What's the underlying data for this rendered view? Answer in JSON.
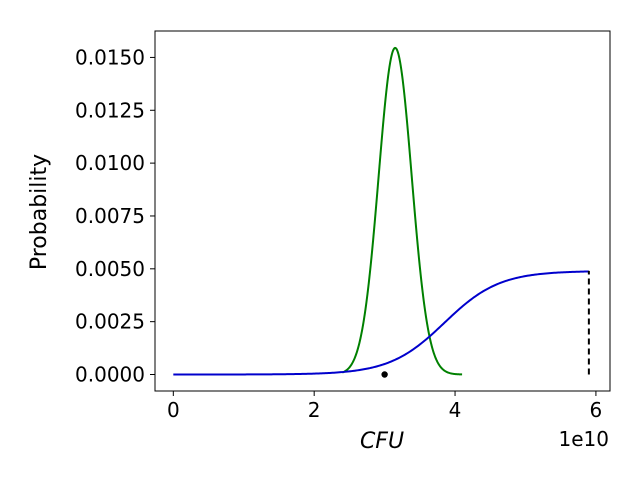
{
  "chart_data": {
    "type": "line",
    "title": "",
    "xlabel": "CFU",
    "ylabel": "Probability",
    "x_offset_label": "1e10",
    "xlim": [
      -2600000000.0,
      62000000000.0
    ],
    "ylim": [
      -0.00078,
      0.01625
    ],
    "x_ticks": [
      0,
      20000000000.0,
      40000000000.0,
      60000000000.0
    ],
    "x_tick_labels": [
      "0",
      "2",
      "4",
      "6"
    ],
    "y_ticks": [
      0.0,
      0.0025,
      0.005,
      0.0075,
      0.01,
      0.0125,
      0.015
    ],
    "y_tick_labels": [
      "0.0000",
      "0.0025",
      "0.0050",
      "0.0075",
      "0.0100",
      "0.0125",
      "0.0150"
    ],
    "grid": false,
    "legend": "none",
    "series": [
      {
        "kind": "gaussian",
        "color": "#008000",
        "x_range": [
          24000000000.0,
          41000000000.0
        ],
        "mean": 31500000000.0,
        "sd": 2350000000.0,
        "peak": 0.01545
      },
      {
        "kind": "logistic",
        "color": "#0000cc",
        "x_range": [
          0,
          59000000000.0
        ],
        "midpoint": 38500000000.0,
        "scale": 3900000000.0,
        "max": 0.0049
      }
    ],
    "markers": [
      {
        "kind": "point",
        "color": "#000000",
        "x": 30000000000.0,
        "y": 0.0
      },
      {
        "kind": "dashed-vline",
        "color": "#000000",
        "x": 59000000000.0,
        "y_range": [
          0.0,
          0.0049
        ]
      }
    ]
  }
}
